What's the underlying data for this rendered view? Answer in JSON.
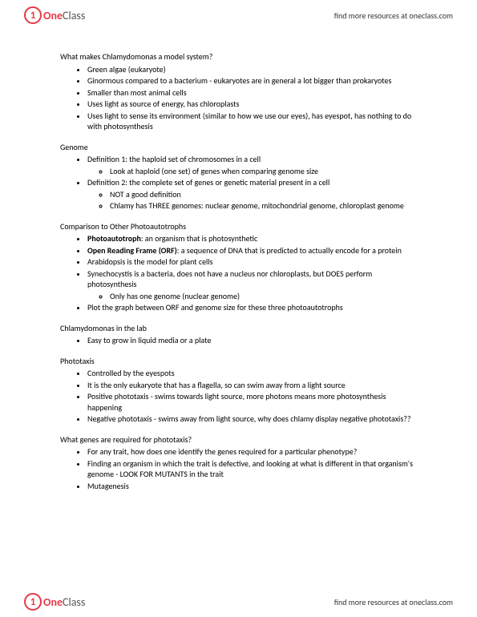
{
  "brand": {
    "one": "One",
    "class": "Class"
  },
  "findMore": "find more resources at oneclass.com",
  "sections": [
    {
      "title": "What makes Chlamydomonas a model system?",
      "items": [
        {
          "text": "Green algae (eukaryote)"
        },
        {
          "text": "Ginormous compared to a bacterium - eukaryotes are in general a lot bigger than prokaryotes"
        },
        {
          "text": "Smaller than most animal cells"
        },
        {
          "text": "Uses light as source of energy, has chloroplasts"
        },
        {
          "text": "Uses light to sense its environment (similar to how we use our eyes), has eyespot, has nothing to do with photosynthesis"
        }
      ]
    },
    {
      "title": "Genome",
      "items": [
        {
          "text": "Definition 1: the haploid set of chromosomes in a cell",
          "sub": [
            "Look at haploid (one set) of genes when comparing genome size"
          ]
        },
        {
          "text": "Definition 2: the complete set of genes or genetic material present in a cell",
          "sub": [
            "NOT a good definition",
            "Chlamy has THREE genomes: nuclear genome, mitochondrial genome, chloroplast genome"
          ]
        }
      ]
    },
    {
      "title": "Comparison to Other Photoautotrophs",
      "items": [
        {
          "html": "<b>Photoautotroph</b>: an organism that is photosynthetic"
        },
        {
          "html": "<b>Open Reading Frame (ORF)</b>: a sequence of DNA that is predicted to actually encode for a protein"
        },
        {
          "text": "Arabidopsis is the model for plant cells"
        },
        {
          "text": "Synechocystis is a bacteria, does not have a nucleus nor chloroplasts, but DOES perform photosynthesis",
          "sub": [
            "Only has one genome (nuclear genome)"
          ]
        },
        {
          "text": "Plot the graph between ORF and genome size for these three photoautotrophs"
        }
      ]
    },
    {
      "title": "Chlamydomonas in the lab",
      "items": [
        {
          "text": "Easy to grow in liquid media or a plate"
        }
      ]
    },
    {
      "title": "Phototaxis",
      "items": [
        {
          "text": "Controlled by the eyespots"
        },
        {
          "text": "It is the only eukaryote that has a flagella, so can swim away from a light source"
        },
        {
          "text": "Positive phototaxis - swims towards light source, more photons means more photosynthesis happening"
        },
        {
          "text": "Negative phototaxis - swims away from light source, why does chlamy display negative phototaxis??"
        }
      ]
    },
    {
      "title": "What genes are required for phototaxis?",
      "items": [
        {
          "text": "For any trait, how does one identify the genes required for a particular phenotype?"
        },
        {
          "text": "Finding an organism in which the trait is defective, and looking at what is different in that organism's genome - LOOK FOR MUTANTS in the trait"
        },
        {
          "text": "Mutagenesis"
        }
      ]
    }
  ]
}
